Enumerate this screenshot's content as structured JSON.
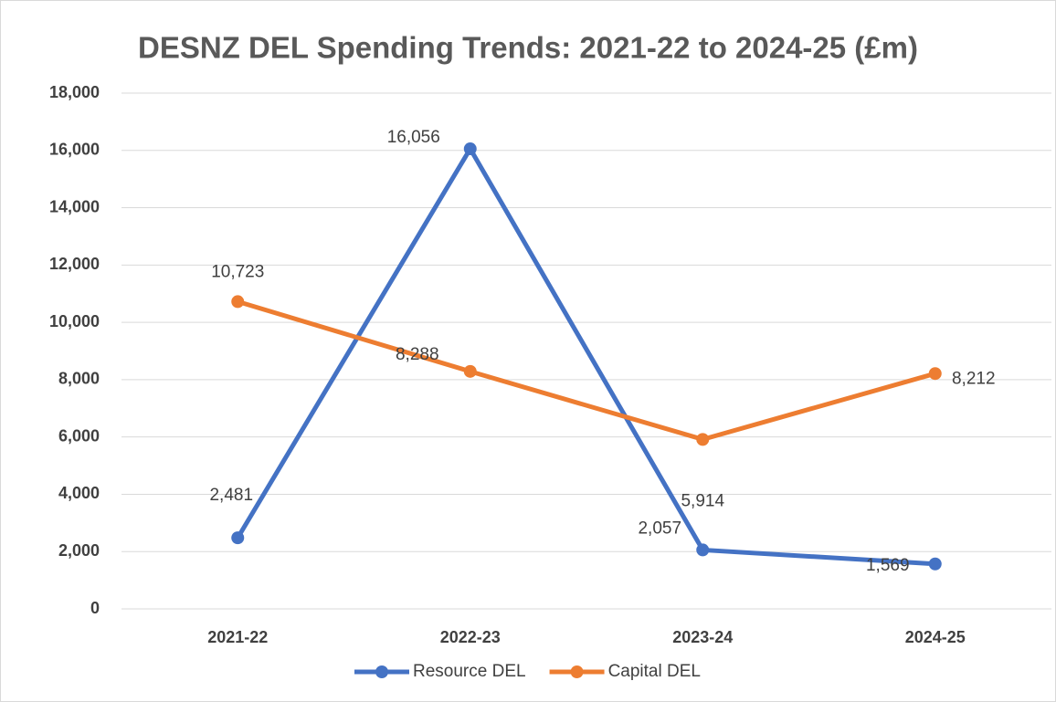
{
  "chart_data": {
    "type": "line",
    "title": "DESNZ DEL Spending Trends: 2021-22 to 2024-25 (£m)",
    "categories": [
      "2021-22",
      "2022-23",
      "2023-24",
      "2024-25"
    ],
    "series": [
      {
        "name": "Resource DEL",
        "color": "#4472c4",
        "values": [
          2481,
          16056,
          2057,
          1569
        ],
        "value_labels": [
          "2,481",
          "16,056",
          "2,057",
          "1,569"
        ]
      },
      {
        "name": "Capital DEL",
        "color": "#ed7d31",
        "values": [
          10723,
          8288,
          5914,
          8212
        ],
        "value_labels": [
          "10,723",
          "8,288",
          "5,914",
          "8,212"
        ]
      }
    ],
    "ylim": [
      0,
      18000
    ],
    "yticks": [
      0,
      {
        "value": 2000,
        "label": "2,000"
      },
      {
        "value": 4000,
        "label": "4,000"
      },
      {
        "value": 6000,
        "label": "6,000"
      },
      {
        "value": 8000,
        "label": "8,000"
      },
      {
        "value": 10000,
        "label": "10,000"
      },
      {
        "value": 12000,
        "label": "12,000"
      },
      {
        "value": 14000,
        "label": "14,000"
      },
      {
        "value": 16000,
        "label": "16,000"
      },
      {
        "value": 18000,
        "label": "18,000"
      }
    ],
    "grid": true,
    "legend": "bottom"
  }
}
